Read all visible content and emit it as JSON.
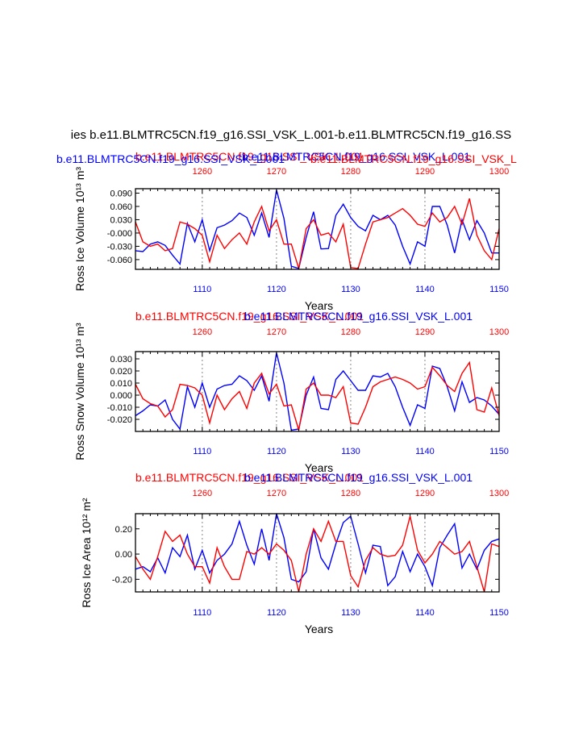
{
  "main_title": "ies b.e11.BLMTRC5CN.f19_g16.SSI_VSK_L.001-b.e11.BLMTRC5CN.f19_g16.SS",
  "colors": {
    "blue": "#0000ff",
    "red": "#ff0000",
    "grid": "#9a9a9a"
  },
  "chart_data": [
    {
      "type": "line",
      "top_title_blue": "b.e11.BLMTRC5CN.f19_g16.SSI_VSK_L.001",
      "top_title_red": "b.e11.BLMTRC5CN.f19_g16.SSI_VSK_L.001",
      "top_title_red2": "b.e11.BLMTRC5CN.f19_g16.SSI_VSK_L",
      "top_title_blue2": "b.e11.BLMTRC5CN.f19_g16.SSI_VSK_L.001",
      "ylabel": "Ross Ice Volume 10¹³ m³",
      "xlabel": "Years",
      "xlim": [
        1101,
        1150
      ],
      "ylim": [
        -0.082,
        0.1
      ],
      "yticks": [
        0.09,
        0.06,
        0.03,
        0.0,
        -0.03,
        -0.06
      ],
      "ytick_labels": [
        "0.090",
        "0.060",
        "0.030",
        "-0.000",
        "-0.030",
        "-0.060"
      ],
      "xticks_bottom": [
        1110,
        1120,
        1130,
        1140,
        1150
      ],
      "xticks_top_labels": [
        "1260",
        "1270",
        "1280",
        "1290",
        "1300"
      ],
      "gridlines_x": [
        1110,
        1120,
        1130,
        1140
      ],
      "series": [
        {
          "color": "blue",
          "x": [
            1101,
            1102,
            1103,
            1104,
            1105,
            1106,
            1107,
            1108,
            1109,
            1110,
            1111,
            1112,
            1113,
            1114,
            1115,
            1116,
            1117,
            1118,
            1119,
            1120,
            1121,
            1122,
            1123,
            1124,
            1125,
            1126,
            1127,
            1128,
            1129,
            1130,
            1131,
            1132,
            1133,
            1134,
            1135,
            1136,
            1137,
            1138,
            1139,
            1140,
            1141,
            1142,
            1143,
            1144,
            1145,
            1146,
            1147,
            1148,
            1149,
            1150
          ],
          "values": [
            -0.04,
            -0.042,
            -0.025,
            -0.02,
            -0.028,
            -0.05,
            -0.07,
            0.022,
            -0.02,
            0.03,
            -0.04,
            0.012,
            0.018,
            0.028,
            0.045,
            0.035,
            -0.005,
            0.045,
            -0.01,
            0.097,
            0.033,
            -0.075,
            -0.08,
            -0.01,
            0.048,
            -0.036,
            -0.035,
            0.04,
            0.065,
            0.035,
            0.015,
            0.005,
            0.04,
            0.03,
            0.04,
            0.018,
            -0.03,
            -0.07,
            -0.02,
            -0.03,
            0.06,
            0.06,
            0.018,
            -0.045,
            0.03,
            -0.015,
            0.028,
            0.0,
            -0.045,
            -0.045
          ]
        },
        {
          "color": "red",
          "x": [
            1101,
            1102,
            1103,
            1104,
            1105,
            1106,
            1107,
            1108,
            1109,
            1110,
            1111,
            1112,
            1113,
            1114,
            1115,
            1116,
            1117,
            1118,
            1119,
            1120,
            1121,
            1122,
            1123,
            1124,
            1125,
            1126,
            1127,
            1128,
            1129,
            1130,
            1131,
            1132,
            1133,
            1134,
            1135,
            1136,
            1137,
            1138,
            1139,
            1140,
            1141,
            1142,
            1143,
            1144,
            1145,
            1146,
            1147,
            1148,
            1149,
            1150
          ],
          "values": [
            0.025,
            -0.02,
            -0.03,
            -0.025,
            -0.04,
            -0.035,
            0.025,
            0.02,
            0.01,
            -0.005,
            -0.065,
            -0.005,
            -0.035,
            -0.015,
            0.0,
            -0.025,
            0.025,
            0.06,
            0.005,
            0.03,
            -0.025,
            -0.025,
            -0.08,
            0.01,
            0.03,
            -0.005,
            0.0,
            -0.02,
            0.02,
            -0.078,
            -0.08,
            -0.025,
            0.025,
            0.03,
            0.035,
            0.045,
            0.055,
            0.04,
            0.02,
            0.015,
            0.045,
            0.025,
            0.035,
            0.06,
            0.02,
            0.078,
            -0.005,
            -0.04,
            -0.06,
            0.01
          ]
        }
      ]
    },
    {
      "type": "line",
      "top_title_red": "b.e11.BLMTRC5CN.f19_g16.SSI_VSK_L.001",
      "top_title_blue": "b.e11.BLMTRC5CN.f19_g16.SSI_VSK_L.001",
      "ylabel": "Ross Snow Volume 10¹³ m³",
      "xlabel": "Years",
      "xlim": [
        1101,
        1150
      ],
      "ylim": [
        -0.03,
        0.036
      ],
      "yticks": [
        0.03,
        0.02,
        0.01,
        0.0,
        -0.01,
        -0.02
      ],
      "ytick_labels": [
        "0.030",
        "0.020",
        "0.010",
        "0.000",
        "-0.010",
        "-0.020"
      ],
      "xticks_bottom": [
        1110,
        1120,
        1130,
        1140,
        1150
      ],
      "xticks_top_labels": [
        "1260",
        "1270",
        "1280",
        "1290",
        "1300"
      ],
      "gridlines_x": [
        1110,
        1120,
        1130,
        1140
      ],
      "series": [
        {
          "color": "blue",
          "x": [
            1101,
            1102,
            1103,
            1104,
            1105,
            1106,
            1107,
            1108,
            1109,
            1110,
            1111,
            1112,
            1113,
            1114,
            1115,
            1116,
            1117,
            1118,
            1119,
            1120,
            1121,
            1122,
            1123,
            1124,
            1125,
            1126,
            1127,
            1128,
            1129,
            1130,
            1131,
            1132,
            1133,
            1134,
            1135,
            1136,
            1137,
            1138,
            1139,
            1140,
            1141,
            1142,
            1143,
            1144,
            1145,
            1146,
            1147,
            1148,
            1149,
            1150
          ],
          "values": [
            -0.017,
            -0.013,
            -0.008,
            -0.009,
            -0.004,
            -0.02,
            -0.028,
            0.007,
            -0.01,
            0.01,
            -0.01,
            0.005,
            0.008,
            0.009,
            0.016,
            0.012,
            0.004,
            0.016,
            -0.005,
            0.035,
            0.01,
            -0.029,
            -0.028,
            0.0,
            0.015,
            -0.011,
            -0.012,
            0.013,
            0.02,
            0.012,
            0.004,
            0.004,
            0.016,
            0.015,
            0.018,
            0.007,
            -0.01,
            -0.025,
            -0.008,
            -0.011,
            0.024,
            0.022,
            0.007,
            -0.013,
            0.011,
            -0.006,
            -0.002,
            -0.004,
            -0.009,
            -0.016
          ]
        },
        {
          "color": "red",
          "x": [
            1101,
            1102,
            1103,
            1104,
            1105,
            1106,
            1107,
            1108,
            1109,
            1110,
            1111,
            1112,
            1113,
            1114,
            1115,
            1116,
            1117,
            1118,
            1119,
            1120,
            1121,
            1122,
            1123,
            1124,
            1125,
            1126,
            1127,
            1128,
            1129,
            1130,
            1131,
            1132,
            1133,
            1134,
            1135,
            1136,
            1137,
            1138,
            1139,
            1140,
            1141,
            1142,
            1143,
            1144,
            1145,
            1146,
            1147,
            1148,
            1149,
            1150
          ],
          "values": [
            0.009,
            -0.003,
            -0.007,
            -0.009,
            -0.018,
            -0.012,
            0.009,
            0.008,
            0.006,
            0.0,
            -0.023,
            0.0,
            -0.012,
            -0.003,
            0.003,
            -0.011,
            0.01,
            0.018,
            0.001,
            0.009,
            -0.009,
            -0.008,
            -0.029,
            0.005,
            0.01,
            0.0,
            0.0,
            -0.002,
            0.007,
            -0.023,
            -0.024,
            -0.01,
            0.007,
            0.011,
            0.013,
            0.015,
            0.013,
            0.01,
            0.005,
            0.007,
            0.023,
            0.016,
            0.008,
            0.003,
            0.018,
            0.027,
            -0.012,
            -0.014,
            0.006,
            -0.017
          ]
        }
      ]
    },
    {
      "type": "line",
      "top_title_red": "b.e11.BLMTRC5CN.f19_g16.SSI_VSK_L.001",
      "top_title_blue": "b.e11.BLMTRC5CN.f19_g16.SSI_VSK_L.001",
      "ylabel": "Ross Ice Area 10¹² m²",
      "xlabel": "Years",
      "xlim": [
        1101,
        1150
      ],
      "ylim": [
        -0.3,
        0.32
      ],
      "yticks": [
        0.2,
        0.0,
        -0.2
      ],
      "ytick_labels": [
        "0.20",
        "0.00",
        "-0.20"
      ],
      "xticks_bottom": [
        1110,
        1120,
        1130,
        1140,
        1150
      ],
      "xticks_top_labels": [
        "1260",
        "1270",
        "1280",
        "1290",
        "1300"
      ],
      "gridlines_x": [
        1110,
        1120,
        1130,
        1140
      ],
      "series": [
        {
          "color": "blue",
          "x": [
            1101,
            1102,
            1103,
            1104,
            1105,
            1106,
            1107,
            1108,
            1109,
            1110,
            1111,
            1112,
            1113,
            1114,
            1115,
            1116,
            1117,
            1118,
            1119,
            1120,
            1121,
            1122,
            1123,
            1124,
            1125,
            1126,
            1127,
            1128,
            1129,
            1130,
            1131,
            1132,
            1133,
            1134,
            1135,
            1136,
            1137,
            1138,
            1139,
            1140,
            1141,
            1142,
            1143,
            1144,
            1145,
            1146,
            1147,
            1148,
            1149,
            1150
          ],
          "values": [
            -0.12,
            -0.1,
            -0.14,
            -0.03,
            -0.15,
            0.05,
            -0.02,
            0.15,
            -0.12,
            0.03,
            -0.15,
            -0.05,
            0.0,
            0.08,
            0.26,
            0.07,
            -0.08,
            0.2,
            -0.05,
            0.32,
            0.13,
            -0.2,
            -0.22,
            -0.14,
            0.2,
            -0.03,
            -0.12,
            0.08,
            0.25,
            0.3,
            0.08,
            -0.15,
            0.07,
            0.06,
            -0.25,
            -0.18,
            0.02,
            -0.14,
            0.0,
            -0.1,
            -0.25,
            0.05,
            0.15,
            0.24,
            -0.11,
            0.0,
            -0.12,
            0.03,
            0.1,
            0.12
          ]
        },
        {
          "color": "red",
          "x": [
            1101,
            1102,
            1103,
            1104,
            1105,
            1106,
            1107,
            1108,
            1109,
            1110,
            1111,
            1112,
            1113,
            1114,
            1115,
            1116,
            1117,
            1118,
            1119,
            1120,
            1121,
            1122,
            1123,
            1124,
            1125,
            1126,
            1127,
            1128,
            1129,
            1130,
            1131,
            1132,
            1133,
            1134,
            1135,
            1136,
            1137,
            1138,
            1139,
            1140,
            1141,
            1142,
            1143,
            1144,
            1145,
            1146,
            1147,
            1148,
            1149,
            1150
          ],
          "values": [
            -0.02,
            -0.12,
            -0.2,
            -0.02,
            0.18,
            0.1,
            0.15,
            0.0,
            -0.1,
            -0.1,
            -0.23,
            0.05,
            -0.1,
            -0.2,
            -0.2,
            0.02,
            0.0,
            0.05,
            0.0,
            0.08,
            0.03,
            -0.05,
            -0.3,
            0.0,
            0.2,
            0.1,
            0.26,
            0.1,
            0.1,
            -0.17,
            -0.26,
            -0.05,
            0.05,
            0.0,
            -0.02,
            -0.01,
            0.07,
            0.3,
            0.03,
            -0.07,
            0.0,
            0.1,
            0.05,
            0.0,
            0.02,
            0.1,
            -0.1,
            -0.3,
            0.08,
            0.06
          ]
        }
      ]
    }
  ]
}
